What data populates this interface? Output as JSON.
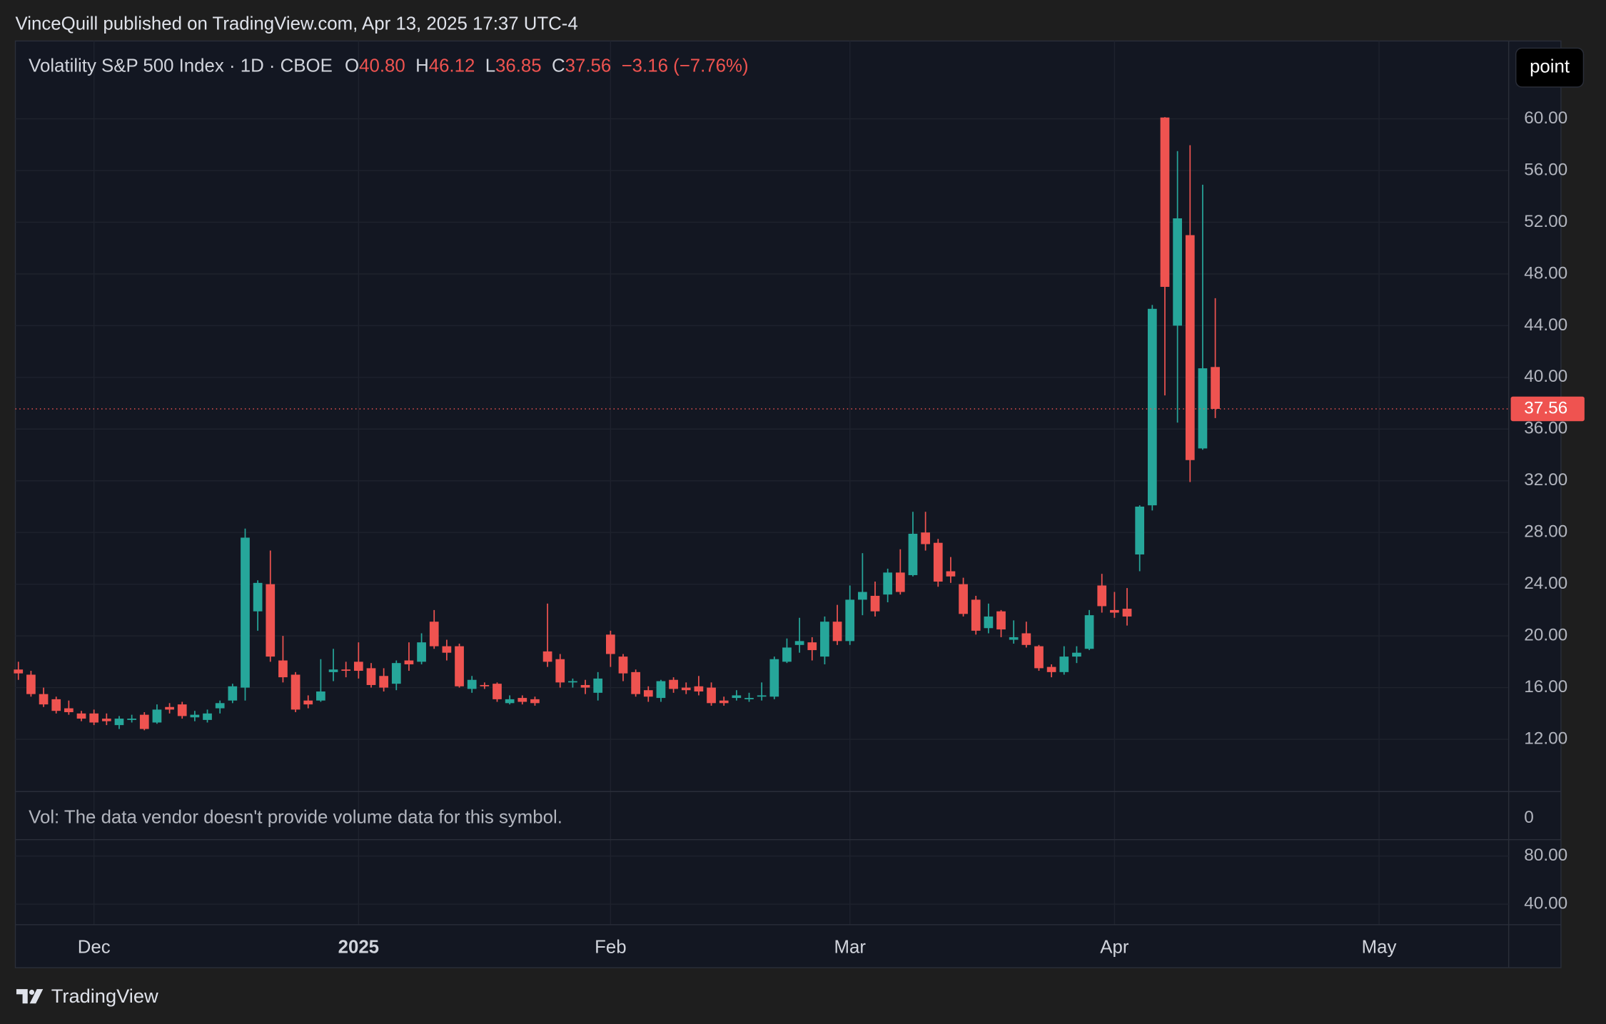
{
  "header": {
    "text": "VinceQuill published on TradingView.com, Apr 13, 2025 17:37 UTC-4"
  },
  "button": "point",
  "footer": {
    "brand": "TradingView"
  },
  "chart_data": {
    "type": "candlestick",
    "legend": {
      "title": "Volatility S&P 500 Index · 1D · CBOE",
      "items": [
        {
          "label": "O",
          "value": "40.80"
        },
        {
          "label": "H",
          "value": "46.12"
        },
        {
          "label": "L",
          "value": "36.85"
        },
        {
          "label": "C",
          "value": "37.56"
        }
      ],
      "change": "−3.16 (−7.76%)"
    },
    "up_color": "#26a69a",
    "down_color": "#ef5350",
    "open": [
      17.4,
      17.0,
      15.5,
      15.1,
      14.4,
      14.0,
      14.0,
      13.6,
      13.1,
      13.5,
      13.9,
      13.3,
      14.5,
      14.7,
      13.7,
      13.5,
      14.4,
      15.0,
      16.0,
      21.9,
      24.0,
      18.1,
      17.0,
      15.0,
      15.0,
      17.2,
      17.4,
      18.0,
      17.5,
      16.9,
      16.3,
      18.1,
      18.0,
      21.1,
      19.2,
      19.2,
      15.9,
      16.2,
      16.3,
      14.8,
      15.2,
      15.1,
      18.8,
      18.2,
      16.4,
      16.2,
      15.6,
      20.1,
      18.4,
      17.2,
      15.8,
      15.2,
      16.6,
      16.0,
      16.1,
      16.0,
      15.0,
      15.2,
      15.1,
      15.3,
      15.3,
      18.0,
      19.3,
      19.5,
      18.4,
      21.1,
      19.6,
      22.8,
      23.1,
      23.2,
      24.9,
      24.7,
      28.0,
      27.2,
      25.0,
      24.0,
      22.8,
      20.6,
      21.9,
      19.7,
      20.2,
      19.2,
      17.6,
      17.2,
      18.4,
      19.0,
      23.9,
      22.0,
      22.1,
      26.3,
      30.1,
      60.1,
      44.0,
      51.0,
      34.5,
      40.8
    ],
    "high": [
      18.0,
      17.3,
      16.0,
      15.3,
      15.0,
      14.2,
      14.3,
      14.0,
      13.8,
      13.9,
      14.1,
      14.7,
      14.8,
      14.9,
      14.2,
      14.3,
      15.0,
      16.3,
      28.3,
      24.3,
      26.6,
      20.0,
      17.2,
      15.4,
      18.2,
      19.0,
      18.0,
      19.5,
      17.9,
      17.5,
      18.1,
      19.5,
      20.2,
      22.0,
      19.7,
      19.4,
      16.9,
      16.4,
      16.4,
      15.4,
      15.4,
      15.3,
      22.5,
      18.6,
      16.7,
      16.6,
      17.2,
      20.4,
      18.6,
      17.4,
      16.1,
      16.6,
      16.8,
      16.4,
      16.9,
      16.4,
      15.3,
      15.8,
      15.6,
      16.4,
      18.4,
      19.8,
      21.4,
      19.9,
      21.5,
      22.4,
      23.9,
      26.4,
      24.2,
      25.2,
      26.7,
      29.6,
      29.6,
      27.5,
      26.1,
      24.5,
      23.1,
      22.5,
      22.0,
      21.2,
      21.1,
      19.3,
      17.8,
      19.2,
      19.2,
      22.0,
      24.8,
      23.4,
      23.7,
      30.1,
      45.6,
      60.13,
      57.5,
      57.96,
      54.9,
      46.12
    ],
    "low": [
      16.6,
      15.3,
      14.5,
      14.0,
      13.9,
      13.4,
      13.1,
      13.1,
      12.8,
      13.3,
      12.7,
      13.2,
      14.0,
      13.6,
      13.4,
      13.3,
      14.0,
      14.8,
      15.0,
      20.4,
      18.0,
      16.4,
      14.1,
      14.4,
      14.9,
      16.5,
      16.8,
      16.7,
      16.0,
      15.7,
      15.8,
      17.3,
      17.8,
      19.0,
      18.1,
      16.0,
      15.6,
      15.9,
      14.9,
      14.7,
      14.7,
      14.6,
      17.6,
      16.0,
      16.0,
      15.5,
      15.0,
      17.6,
      16.5,
      15.3,
      14.9,
      14.9,
      15.6,
      15.5,
      15.4,
      14.6,
      14.6,
      15.0,
      14.9,
      15.0,
      15.1,
      17.9,
      18.7,
      18.1,
      17.8,
      19.3,
      19.3,
      21.6,
      21.5,
      22.6,
      23.2,
      24.6,
      26.6,
      23.8,
      24.1,
      21.5,
      20.1,
      20.2,
      19.9,
      19.4,
      19.1,
      17.3,
      16.8,
      17.0,
      17.9,
      18.9,
      21.8,
      21.4,
      20.8,
      25.0,
      29.7,
      38.6,
      36.5,
      31.9,
      34.4,
      36.85
    ],
    "close": [
      17.1,
      15.5,
      14.7,
      14.2,
      14.1,
      13.6,
      13.3,
      13.4,
      13.6,
      13.6,
      12.8,
      14.3,
      14.3,
      13.8,
      13.9,
      14.0,
      14.8,
      16.1,
      27.6,
      24.1,
      18.4,
      16.8,
      14.3,
      14.7,
      15.7,
      17.4,
      17.3,
      17.3,
      16.2,
      16.0,
      17.9,
      17.8,
      19.5,
      19.2,
      18.7,
      16.1,
      16.6,
      16.1,
      15.1,
      15.1,
      14.9,
      14.8,
      18.0,
      16.4,
      16.5,
      16.0,
      16.7,
      18.6,
      17.1,
      15.5,
      15.3,
      16.5,
      15.9,
      15.8,
      15.7,
      14.8,
      14.8,
      15.4,
      15.2,
      15.4,
      18.2,
      19.1,
      19.6,
      18.9,
      21.1,
      19.6,
      22.8,
      23.4,
      21.9,
      24.9,
      23.4,
      27.9,
      27.1,
      24.2,
      24.6,
      21.7,
      20.4,
      21.5,
      20.5,
      19.9,
      19.3,
      17.5,
      17.2,
      18.4,
      18.7,
      21.6,
      22.3,
      21.8,
      21.5,
      30.0,
      45.3,
      47.0,
      52.3,
      33.6,
      40.7,
      37.56
    ],
    "last_price": 37.56,
    "xlim": [
      -0.24,
      118.29
    ],
    "xticks": [
      {
        "value": 6,
        "label": "Dec"
      },
      {
        "value": 27,
        "label": "2025"
      },
      {
        "value": 47,
        "label": "Feb"
      },
      {
        "value": 66,
        "label": "Mar"
      },
      {
        "value": 87,
        "label": "Apr"
      },
      {
        "value": 108,
        "label": "May"
      }
    ],
    "ylim": [
      7.96,
      66.02
    ],
    "yticks": [
      {
        "value": 12,
        "label": "12.00"
      },
      {
        "value": 16,
        "label": "16.00"
      },
      {
        "value": 20,
        "label": "20.00"
      },
      {
        "value": 24,
        "label": "24.00"
      },
      {
        "value": 28,
        "label": "28.00"
      },
      {
        "value": 32,
        "label": "32.00"
      },
      {
        "value": 36,
        "label": "36.00"
      },
      {
        "value": 40,
        "label": "40.00"
      },
      {
        "value": 44,
        "label": "44.00"
      },
      {
        "value": 48,
        "label": "48.00"
      },
      {
        "value": 52,
        "label": "52.00"
      },
      {
        "value": 56,
        "label": "56.00"
      },
      {
        "value": 60,
        "label": "60.00"
      }
    ],
    "grid": true,
    "volume_note": "Vol: The data vendor doesn't provide volume data for this symbol.",
    "volume_tick": "0",
    "lower_pane_ticks": [
      "80.00",
      "40.00"
    ]
  }
}
